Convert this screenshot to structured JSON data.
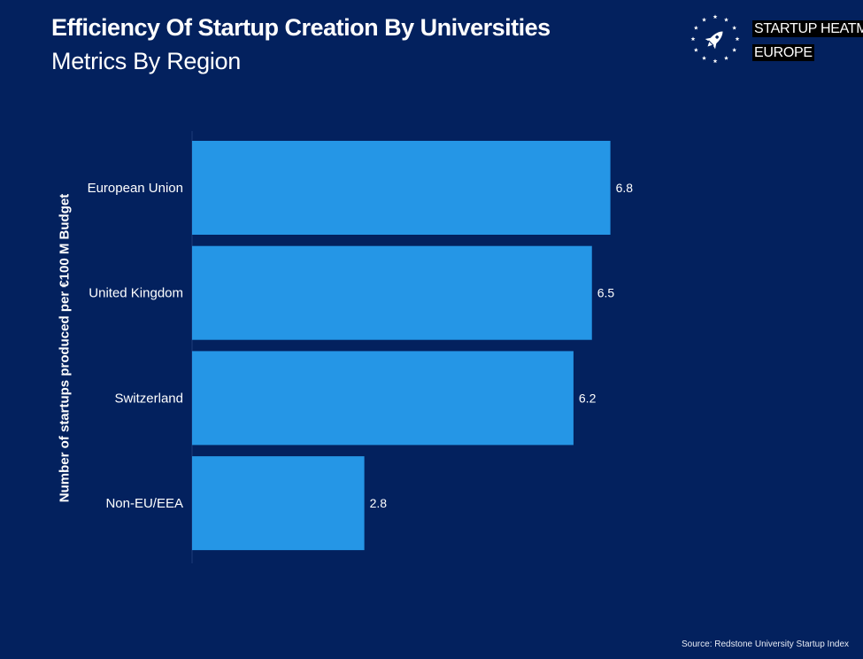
{
  "header": {
    "title": "Efficiency Of Startup Creation By Universities",
    "subtitle": "Metrics By Region"
  },
  "logo": {
    "line1": "STARTUP HEATMAP",
    "line2": "EUROPE",
    "icon": "rocket-in-star-circle-icon"
  },
  "colors": {
    "background": "#03215e",
    "bar": "#2596e6",
    "text": "#ffffff"
  },
  "footer": {
    "source": "Source: Redstone University Startup Index"
  },
  "chart_data": {
    "type": "bar",
    "orientation": "horizontal",
    "title": "Efficiency Of Startup Creation By Universities",
    "subtitle": "Metrics By Region",
    "ylabel": "Number of startups produced per €100 M Budget",
    "xlabel": "",
    "categories": [
      "European Union",
      "United Kingdom",
      "Switzerland",
      "Non-EU/EEA"
    ],
    "values": [
      6.8,
      6.5,
      6.2,
      2.8
    ],
    "data_labels": [
      "6.8",
      "6.5",
      "6.2",
      "2.8"
    ],
    "xlim": [
      0,
      10
    ],
    "grid": false,
    "legend": "none"
  }
}
